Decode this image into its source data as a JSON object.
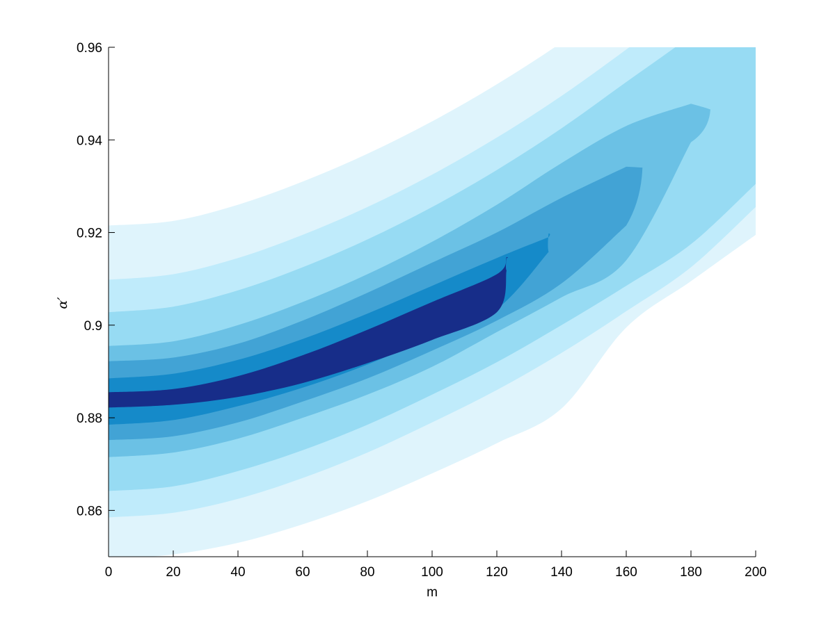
{
  "chart_data": {
    "type": "contour",
    "xlabel": "m",
    "ylabel": "α′",
    "xlim": [
      0,
      200
    ],
    "ylim": [
      0.85,
      0.96
    ],
    "x_ticks": [
      0,
      20,
      40,
      60,
      80,
      100,
      120,
      140,
      160,
      180,
      200
    ],
    "x_tick_labels": [
      "0",
      "20",
      "40",
      "60",
      "80",
      "100",
      "120",
      "140",
      "160",
      "180",
      "200"
    ],
    "y_ticks": [
      0.86,
      0.88,
      0.9,
      0.92,
      0.94,
      0.96
    ],
    "y_tick_labels": [
      "0.86",
      "0.88",
      "0.9",
      "0.92",
      "0.94",
      "0.96"
    ],
    "grid": false,
    "legend": "none",
    "ridge_curve": {
      "m": [
        0,
        20,
        40,
        60,
        80,
        100,
        120,
        140,
        160,
        180,
        200
      ],
      "alpha": [
        0.8835,
        0.8845,
        0.8873,
        0.8912,
        0.8958,
        0.9008,
        0.9066,
        0.9131,
        0.9203,
        0.9282,
        0.9368
      ]
    },
    "levels": [
      {
        "level": 1,
        "color": "#dff4fc",
        "upper": [
          0.9215,
          0.9225,
          0.926,
          0.931,
          0.937,
          0.944,
          0.952,
          0.961,
          0.971,
          0.982,
          0.994
        ],
        "lower": [
          0.8495,
          0.8505,
          0.853,
          0.857,
          0.862,
          0.868,
          0.8745,
          0.882,
          0.8995,
          0.9095,
          0.9195
        ]
      },
      {
        "level": 2,
        "color": "#bfebfb",
        "upper": [
          0.9098,
          0.911,
          0.9145,
          0.9195,
          0.9255,
          0.9325,
          0.9405,
          0.9495,
          0.9595,
          0.97,
          0.981
        ],
        "lower": [
          0.8585,
          0.8595,
          0.8625,
          0.867,
          0.8725,
          0.879,
          0.886,
          0.894,
          0.903,
          0.9125,
          0.9255
        ]
      },
      {
        "level": 3,
        "color": "#97dbf3",
        "upper": [
          0.9028,
          0.904,
          0.9075,
          0.9125,
          0.9185,
          0.9255,
          0.9335,
          0.9425,
          0.9525,
          0.9625,
          0.9735
        ],
        "lower": [
          0.8642,
          0.8652,
          0.8685,
          0.873,
          0.8785,
          0.885,
          0.892,
          0.9,
          0.9085,
          0.9175,
          0.9305
        ]
      },
      {
        "level": 4,
        "color": "#6bc1e5",
        "upper": [
          0.8955,
          0.8965,
          0.9,
          0.905,
          0.911,
          0.918,
          0.926,
          0.935,
          0.943,
          0.9478
        ],
        "lower": [
          0.8715,
          0.8725,
          0.8755,
          0.88,
          0.885,
          0.891,
          0.8985,
          0.906,
          0.914,
          0.9395
        ],
        "x_end": 186,
        "tip_alpha": 0.9465
      },
      {
        "level": 5,
        "color": "#42a3d5",
        "upper": [
          0.8922,
          0.893,
          0.896,
          0.901,
          0.907,
          0.9135,
          0.92,
          0.9275,
          0.9342
        ],
        "lower": [
          0.8752,
          0.876,
          0.879,
          0.8835,
          0.8885,
          0.8945,
          0.901,
          0.909,
          0.9215
        ],
        "x_end": 165,
        "tip_alpha": 0.934
      },
      {
        "level": 6,
        "color": "#158ac9",
        "upper": [
          0.8885,
          0.8895,
          0.8925,
          0.897,
          0.9025,
          0.9085,
          0.9145,
          0.919
        ],
        "lower": [
          0.8785,
          0.8795,
          0.8825,
          0.8865,
          0.8915,
          0.8975,
          0.9035,
          0.9158
        ],
        "x_end": 136,
        "tip_alpha": 0.9198
      },
      {
        "level": 7,
        "color": "#172d89",
        "upper": [
          0.8855,
          0.8862,
          0.889,
          0.8935,
          0.899,
          0.905,
          0.911,
          0.9147
        ],
        "lower": [
          0.8822,
          0.8828,
          0.8845,
          0.8875,
          0.8918,
          0.8968,
          0.9028,
          0.9118
        ],
        "x_end": 123,
        "tip_alpha": 0.9145
      }
    ]
  }
}
